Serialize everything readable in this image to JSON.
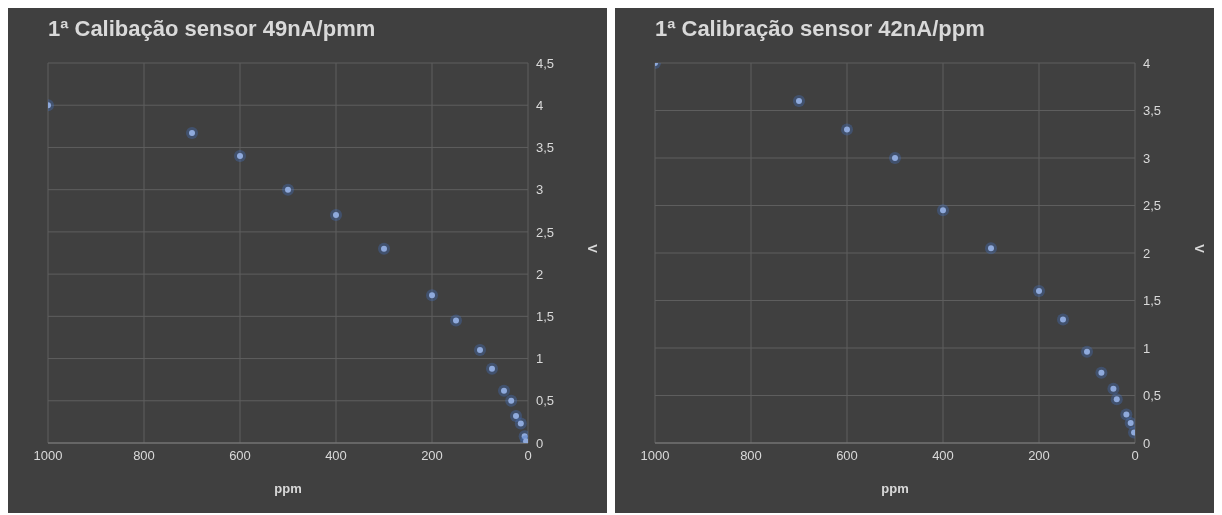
{
  "chart_data": [
    {
      "type": "scatter",
      "title": "1ª Calibação  sensor 49nA/pmm",
      "xlabel": "ppm",
      "ylabel": "V",
      "x": [
        1000,
        700,
        600,
        500,
        400,
        300,
        200,
        150,
        100,
        75,
        50,
        35,
        25,
        15,
        7,
        4
      ],
      "values": [
        4.0,
        3.67,
        3.4,
        3.0,
        2.7,
        2.3,
        1.75,
        1.45,
        1.1,
        0.88,
        0.62,
        0.5,
        0.32,
        0.23,
        0.08,
        0.02
      ],
      "color": "#8faadc",
      "marker": "circle",
      "grid": true,
      "xlim": [
        1000,
        0
      ],
      "xticks": [
        1000,
        800,
        600,
        400,
        200,
        0
      ],
      "ylim": [
        0,
        4.5
      ],
      "yticks": [
        0,
        {
          "value": 0.5,
          "label": "0,5"
        },
        1,
        {
          "value": 1.5,
          "label": "1,5"
        },
        2,
        {
          "value": 2.5,
          "label": "2,5"
        },
        3,
        {
          "value": 3.5,
          "label": "3,5"
        },
        4,
        {
          "value": 4.5,
          "label": "4,5"
        }
      ]
    },
    {
      "type": "scatter",
      "title": "1ª Calibração sensor 42nA/ppm",
      "xlabel": "ppm",
      "ylabel": "V",
      "x": [
        1000,
        700,
        600,
        500,
        400,
        300,
        200,
        150,
        100,
        70,
        45,
        38,
        18,
        9,
        2
      ],
      "values": [
        4.0,
        3.6,
        3.3,
        3.0,
        2.45,
        2.05,
        1.6,
        1.3,
        0.96,
        0.74,
        0.57,
        0.46,
        0.3,
        0.21,
        0.11
      ],
      "color": "#8faadc",
      "marker": "circle",
      "grid": true,
      "xlim": [
        1000,
        0
      ],
      "xticks": [
        1000,
        800,
        600,
        400,
        200,
        0
      ],
      "ylim": [
        0,
        4
      ],
      "yticks": [
        0,
        {
          "value": 0.5,
          "label": "0,5"
        },
        1,
        {
          "value": 1.5,
          "label": "1,5"
        },
        2,
        {
          "value": 2.5,
          "label": "2,5"
        },
        3,
        {
          "value": 3.5,
          "label": "3,5"
        },
        4
      ]
    }
  ]
}
